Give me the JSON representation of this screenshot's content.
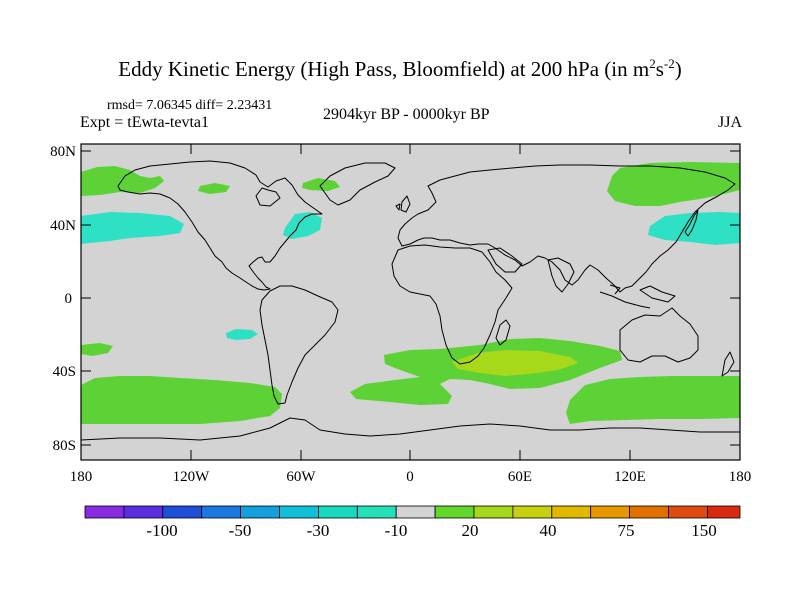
{
  "header": {
    "title_main": "Eddy Kinetic Energy (High Pass, Bloomfield) at 200 hPa (in m",
    "title_sup1": "2",
    "title_mid": "s",
    "title_sup2": "-2",
    "title_end": ")",
    "stats": "rmsd= 7.06345 diff= 2.23431",
    "experiment": "Expt = tEwta-tevta1",
    "period": "2904kyr BP - 0000kyr BP",
    "season": "JJA"
  },
  "map": {
    "background_color": "#d3d3d3",
    "coastline_color": "#000000",
    "lat_labels": [
      "80N",
      "40N",
      "0",
      "40S",
      "80S"
    ],
    "lon_labels": [
      "180",
      "120W",
      "60W",
      "0",
      "60E",
      "120E",
      "180"
    ]
  },
  "colorbar": {
    "colors": [
      "#8a2be2",
      "#5a2fe0",
      "#1e4fd8",
      "#1a78e0",
      "#12a0e0",
      "#10c0d8",
      "#18d8c0",
      "#24e0b8",
      "#d3d3d3",
      "#62d62a",
      "#a8d81a",
      "#c8d010",
      "#e0b800",
      "#e89800",
      "#e07000",
      "#e04a10",
      "#d82a10"
    ],
    "labels": [
      "-100",
      "-50",
      "-30",
      "-10",
      "20",
      "40",
      "75",
      "150"
    ]
  },
  "anomaly_regions": [
    {
      "name": "North Pacific west",
      "color": "#5cd236"
    },
    {
      "name": "North Pacific east",
      "color": "#5cd236"
    },
    {
      "name": "Eastern North Pacific",
      "color": "#2ee0c4"
    },
    {
      "name": "North Atlantic",
      "color": "#2ee0c4"
    },
    {
      "name": "Greenland Sea",
      "color": "#5cd236"
    },
    {
      "name": "North Eurasia",
      "color": "#5cd236"
    },
    {
      "name": "Northwest Pacific",
      "color": "#2ee0c4"
    },
    {
      "name": "South Pacific",
      "color": "#5cd236"
    },
    {
      "name": "Tropical South Pacific",
      "color": "#2ee0c4"
    },
    {
      "name": "South Atlantic / Indian",
      "color": "#5cd236"
    },
    {
      "name": "South Indian core",
      "color": "#a8d81a"
    },
    {
      "name": "Southern Ocean east",
      "color": "#5cd236"
    }
  ]
}
